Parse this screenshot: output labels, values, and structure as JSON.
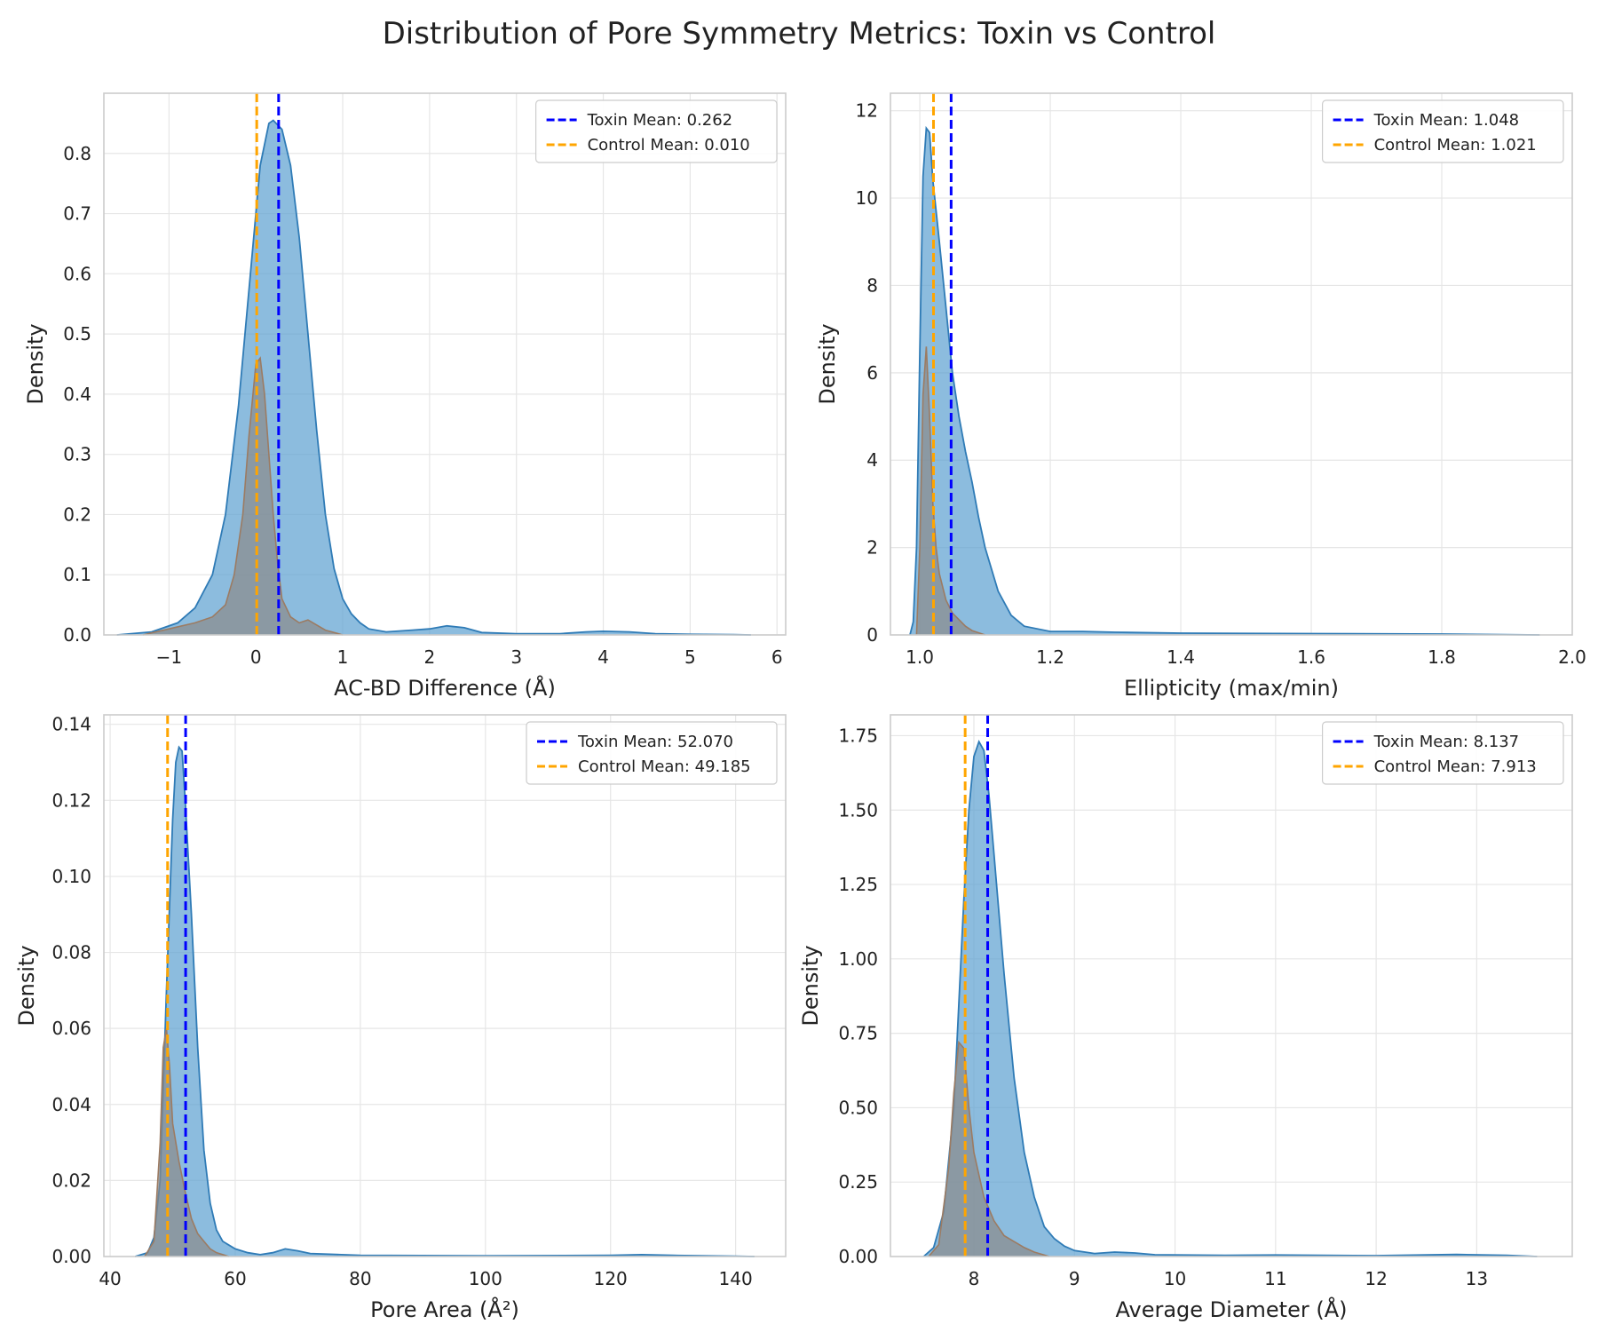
{
  "figure": {
    "title": "Distribution of Pore Symmetry Metrics: Toxin vs Control"
  },
  "colors": {
    "toxin_fill": "#5b9fd0",
    "toxin_line": "#2f7bb6",
    "control_fill": "#8a8a8a",
    "control_line": "#9c7b62",
    "toxin_mean_line": "#0000ff",
    "control_mean_line": "#ffa500",
    "grid": "#e6e6e6",
    "axes_edge": "#cccccc"
  },
  "chart_data": [
    {
      "type": "area",
      "xlabel": "AC-BD Difference (Å)",
      "ylabel": "Density",
      "xlim": [
        -1.75,
        6.1
      ],
      "ylim": [
        0,
        0.9
      ],
      "xticks": [
        -1,
        0,
        1,
        2,
        3,
        4,
        5,
        6
      ],
      "xtick_labels": [
        "−1",
        "0",
        "1",
        "2",
        "3",
        "4",
        "5",
        "6"
      ],
      "yticks": [
        0,
        0.1,
        0.2,
        0.3,
        0.4,
        0.5,
        0.6,
        0.7,
        0.8
      ],
      "ytick_labels": [
        "0.0",
        "0.1",
        "0.2",
        "0.3",
        "0.4",
        "0.5",
        "0.6",
        "0.7",
        "0.8"
      ],
      "grid": true,
      "legend_position": "top-right",
      "legend": [
        "Toxin Mean: 0.262",
        "Control Mean: 0.010"
      ],
      "means": {
        "toxin": 0.262,
        "control": 0.01
      },
      "series": [
        {
          "name": "Toxin",
          "x": [
            -1.6,
            -1.2,
            -0.9,
            -0.7,
            -0.5,
            -0.35,
            -0.2,
            -0.05,
            0.05,
            0.15,
            0.2,
            0.3,
            0.4,
            0.5,
            0.6,
            0.7,
            0.8,
            0.9,
            1.0,
            1.1,
            1.2,
            1.3,
            1.5,
            1.8,
            2.0,
            2.2,
            2.4,
            2.6,
            3.0,
            3.5,
            3.8,
            4.0,
            4.3,
            4.6,
            5.0,
            5.5,
            5.7
          ],
          "y": [
            0.0,
            0.005,
            0.02,
            0.045,
            0.1,
            0.2,
            0.38,
            0.62,
            0.78,
            0.85,
            0.855,
            0.84,
            0.78,
            0.66,
            0.5,
            0.34,
            0.2,
            0.11,
            0.06,
            0.035,
            0.02,
            0.01,
            0.005,
            0.008,
            0.01,
            0.015,
            0.012,
            0.004,
            0.002,
            0.002,
            0.005,
            0.006,
            0.005,
            0.002,
            0.001,
            0.0005,
            0.0
          ]
        },
        {
          "name": "Control",
          "x": [
            -1.3,
            -1.0,
            -0.7,
            -0.5,
            -0.35,
            -0.25,
            -0.15,
            -0.08,
            0.0,
            0.05,
            0.1,
            0.15,
            0.2,
            0.25,
            0.3,
            0.4,
            0.5,
            0.6,
            0.8,
            1.0
          ],
          "y": [
            0.0,
            0.01,
            0.02,
            0.03,
            0.05,
            0.1,
            0.2,
            0.33,
            0.45,
            0.46,
            0.4,
            0.3,
            0.2,
            0.12,
            0.06,
            0.03,
            0.02,
            0.025,
            0.008,
            0.0
          ]
        }
      ]
    },
    {
      "type": "area",
      "xlabel": "Ellipticity (max/min)",
      "ylabel": "Density",
      "xlim": [
        0.955,
        2.0
      ],
      "ylim": [
        0,
        12.4
      ],
      "xticks": [
        1.0,
        1.2,
        1.4,
        1.6,
        1.8,
        2.0
      ],
      "xtick_labels": [
        "1.0",
        "1.2",
        "1.4",
        "1.6",
        "1.8",
        "2.0"
      ],
      "yticks": [
        0,
        2,
        4,
        6,
        8,
        10,
        12
      ],
      "ytick_labels": [
        "0",
        "2",
        "4",
        "6",
        "8",
        "10",
        "12"
      ],
      "grid": true,
      "legend_position": "top-right",
      "legend": [
        "Toxin Mean: 1.048",
        "Control Mean: 1.021"
      ],
      "means": {
        "toxin": 1.048,
        "control": 1.021
      },
      "series": [
        {
          "name": "Toxin",
          "x": [
            0.985,
            0.99,
            0.995,
            1.0,
            1.005,
            1.01,
            1.015,
            1.02,
            1.03,
            1.04,
            1.05,
            1.06,
            1.07,
            1.08,
            1.09,
            1.1,
            1.12,
            1.14,
            1.16,
            1.2,
            1.25,
            1.3,
            1.4,
            1.6,
            1.8,
            1.95
          ],
          "y": [
            0.0,
            0.3,
            2.0,
            6.5,
            10.5,
            11.6,
            11.5,
            10.4,
            9.0,
            7.5,
            6.0,
            5.0,
            4.2,
            3.5,
            2.7,
            2.0,
            1.0,
            0.45,
            0.2,
            0.08,
            0.08,
            0.06,
            0.04,
            0.03,
            0.02,
            0.0
          ]
        },
        {
          "name": "Control",
          "x": [
            0.995,
            1.0,
            1.005,
            1.01,
            1.015,
            1.02,
            1.025,
            1.03,
            1.04,
            1.05,
            1.06,
            1.07,
            1.08,
            1.1
          ],
          "y": [
            0.0,
            2.0,
            5.5,
            6.6,
            5.0,
            3.0,
            2.0,
            1.4,
            0.8,
            0.5,
            0.35,
            0.2,
            0.1,
            0.0
          ]
        }
      ]
    },
    {
      "type": "area",
      "xlabel": "Pore Area (Å²)",
      "ylabel": "Density",
      "xlim": [
        39,
        148
      ],
      "ylim": [
        0,
        0.1425
      ],
      "xticks": [
        40,
        60,
        80,
        100,
        120,
        140
      ],
      "xtick_labels": [
        "40",
        "60",
        "80",
        "100",
        "120",
        "140"
      ],
      "yticks": [
        0,
        0.02,
        0.04,
        0.06,
        0.08,
        0.1,
        0.12,
        0.14
      ],
      "ytick_labels": [
        "0.00",
        "0.02",
        "0.04",
        "0.06",
        "0.08",
        "0.10",
        "0.12",
        "0.14"
      ],
      "grid": true,
      "legend_position": "top-right",
      "legend": [
        "Toxin Mean: 52.070",
        "Control Mean: 49.185"
      ],
      "means": {
        "toxin": 52.07,
        "control": 49.185
      },
      "series": [
        {
          "name": "Toxin",
          "x": [
            44,
            46,
            47,
            48,
            49,
            50,
            50.5,
            51,
            51.5,
            52,
            53,
            54,
            55,
            56,
            57,
            58,
            60,
            62,
            64,
            66,
            68,
            70,
            72,
            80,
            100,
            120,
            125,
            130,
            140,
            143
          ],
          "y": [
            0.0,
            0.001,
            0.005,
            0.02,
            0.07,
            0.115,
            0.13,
            0.134,
            0.133,
            0.12,
            0.09,
            0.055,
            0.028,
            0.014,
            0.007,
            0.004,
            0.002,
            0.001,
            0.0005,
            0.001,
            0.002,
            0.0015,
            0.0008,
            0.0003,
            0.0002,
            0.0003,
            0.0005,
            0.0003,
            0.0001,
            0.0
          ]
        },
        {
          "name": "Control",
          "x": [
            45.5,
            47,
            48,
            48.5,
            49,
            49.5,
            50,
            51,
            52,
            53,
            54,
            55,
            56,
            57,
            59
          ],
          "y": [
            0.0,
            0.004,
            0.03,
            0.055,
            0.06,
            0.05,
            0.035,
            0.025,
            0.017,
            0.01,
            0.006,
            0.004,
            0.002,
            0.001,
            0.0
          ]
        }
      ]
    },
    {
      "type": "area",
      "xlabel": "Average Diameter (Å)",
      "ylabel": "Density",
      "xlim": [
        7.17,
        13.95
      ],
      "ylim": [
        0,
        1.82
      ],
      "xticks": [
        8,
        9,
        10,
        11,
        12,
        13
      ],
      "xtick_labels": [
        "8",
        "9",
        "10",
        "11",
        "12",
        "13"
      ],
      "yticks": [
        0,
        0.25,
        0.5,
        0.75,
        1.0,
        1.25,
        1.5,
        1.75
      ],
      "ytick_labels": [
        "0.00",
        "0.25",
        "0.50",
        "0.75",
        "1.00",
        "1.25",
        "1.50",
        "1.75"
      ],
      "grid": true,
      "legend_position": "top-right",
      "legend": [
        "Toxin Mean: 8.137",
        "Control Mean: 7.913"
      ],
      "means": {
        "toxin": 8.137,
        "control": 7.913
      },
      "series": [
        {
          "name": "Toxin",
          "x": [
            7.5,
            7.6,
            7.7,
            7.8,
            7.9,
            7.95,
            8.0,
            8.05,
            8.1,
            8.15,
            8.2,
            8.3,
            8.4,
            8.5,
            8.6,
            8.7,
            8.8,
            8.9,
            9.0,
            9.2,
            9.4,
            9.6,
            9.8,
            10.5,
            11.0,
            12.0,
            12.8,
            13.3,
            13.6
          ],
          "y": [
            0.0,
            0.03,
            0.15,
            0.5,
            1.2,
            1.5,
            1.68,
            1.73,
            1.7,
            1.55,
            1.35,
            0.95,
            0.6,
            0.35,
            0.2,
            0.1,
            0.06,
            0.035,
            0.02,
            0.01,
            0.015,
            0.012,
            0.006,
            0.004,
            0.005,
            0.003,
            0.007,
            0.004,
            0.0
          ]
        },
        {
          "name": "Control",
          "x": [
            7.55,
            7.65,
            7.75,
            7.8,
            7.85,
            7.9,
            7.95,
            8.0,
            8.1,
            8.2,
            8.3,
            8.4,
            8.5,
            8.6,
            8.75
          ],
          "y": [
            0.0,
            0.04,
            0.3,
            0.55,
            0.72,
            0.7,
            0.5,
            0.35,
            0.2,
            0.12,
            0.07,
            0.05,
            0.03,
            0.015,
            0.0
          ]
        }
      ]
    }
  ]
}
